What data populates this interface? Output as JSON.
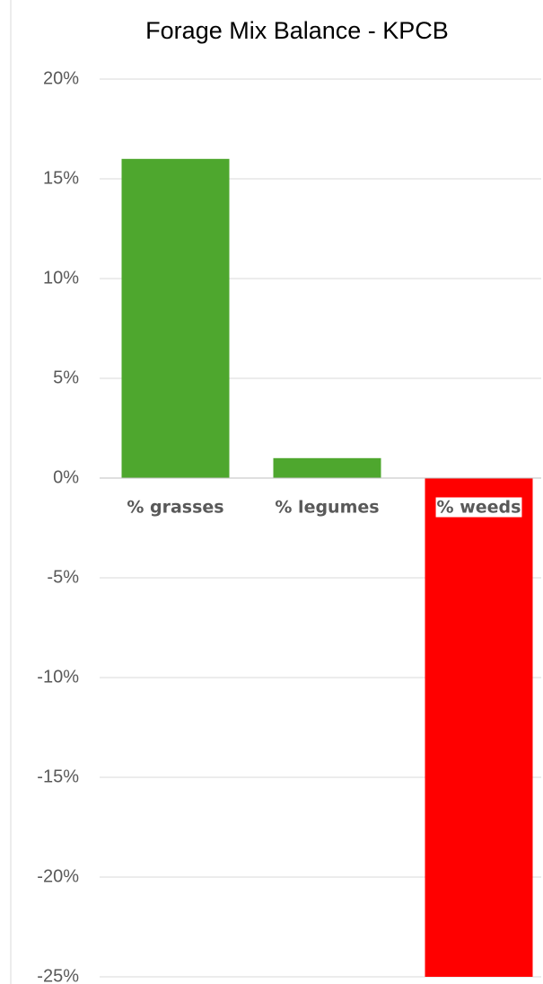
{
  "chart_data": {
    "type": "bar",
    "title": "Forage Mix Balance - KPCB",
    "categories": [
      "% grasses",
      "% legumes",
      "% weeds"
    ],
    "values": [
      16,
      1,
      -25
    ],
    "colors": [
      "#4ea72e",
      "#4ea72e",
      "#ff0000"
    ],
    "ylim": [
      -25,
      20
    ],
    "yticks": [
      {
        "value": 20,
        "label": "20%"
      },
      {
        "value": 15,
        "label": "15%"
      },
      {
        "value": 10,
        "label": "10%"
      },
      {
        "value": 5,
        "label": "5%"
      },
      {
        "value": 0,
        "label": "0%"
      },
      {
        "value": -5,
        "label": "-5%"
      },
      {
        "value": -10,
        "label": "-10%"
      },
      {
        "value": -15,
        "label": "-15%"
      },
      {
        "value": -20,
        "label": "-20%"
      },
      {
        "value": -25,
        "label": "-25%"
      }
    ],
    "grid": true
  }
}
